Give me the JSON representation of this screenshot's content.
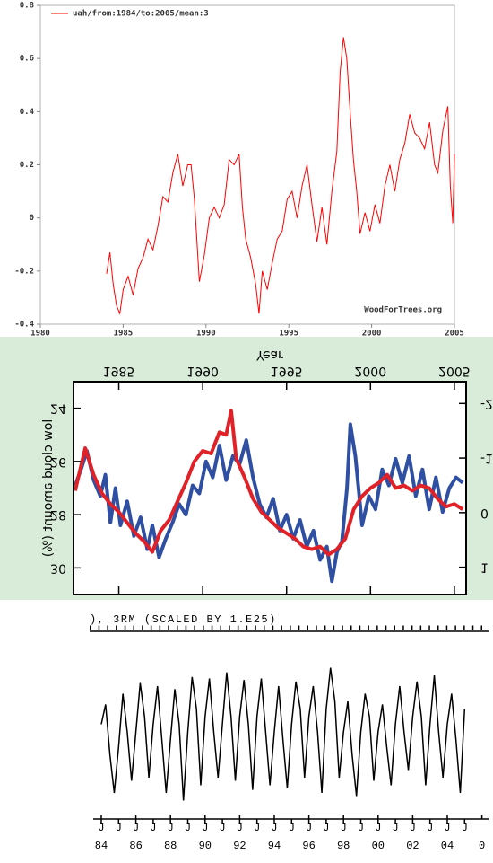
{
  "chart_data": [
    {
      "type": "line",
      "series": [
        {
          "name": "uah/from:1984/to:2005/mean:3",
          "color": "#ff0000",
          "values": [
            -0.21,
            -0.13,
            -0.25,
            -0.33,
            -0.36,
            -0.27,
            -0.22,
            -0.29,
            -0.19,
            -0.15,
            -0.08,
            -0.12,
            -0.03,
            0.08,
            0.06,
            0.17,
            0.24,
            0.12,
            0.2,
            0.2,
            0.07,
            -0.24,
            -0.14,
            0,
            0.04,
            0,
            0.05,
            0.22,
            0.2,
            0.24,
            0.04,
            -0.08,
            -0.15,
            -0.25,
            -0.36,
            -0.2,
            -0.27,
            -0.17,
            -0.08,
            -0.05,
            0.07,
            0.1,
            0,
            0.12,
            0.2,
            0.05,
            -0.09,
            0.04,
            -0.1,
            0.1,
            0.25,
            0.55,
            0.68,
            0.6,
            0.4,
            0.22,
            0.1,
            -0.06,
            0.02,
            -0.05,
            0.05,
            -0.02,
            0.12,
            0.2,
            0.1,
            0.22,
            0.28,
            0.39,
            0.32,
            0.3,
            0.26,
            0.36,
            0.2,
            0.17,
            0.33,
            0.42,
            0.12,
            -0.02,
            0.24
          ]
        }
      ],
      "x": [
        1984.0,
        1984.2,
        1984.4,
        1984.6,
        1984.8,
        1985.0,
        1985.3,
        1985.6,
        1985.9,
        1986.2,
        1986.5,
        1986.8,
        1987.1,
        1987.4,
        1987.7,
        1988.0,
        1988.3,
        1988.6,
        1988.9,
        1989.1,
        1989.3,
        1989.6,
        1989.9,
        1990.2,
        1990.5,
        1990.8,
        1991.1,
        1991.4,
        1991.7,
        1992.0,
        1992.2,
        1992.4,
        1992.7,
        1993.0,
        1993.2,
        1993.4,
        1993.7,
        1994.0,
        1994.3,
        1994.6,
        1994.9,
        1995.2,
        1995.5,
        1995.8,
        1996.1,
        1996.4,
        1996.7,
        1997.0,
        1997.3,
        1997.6,
        1997.9,
        1998.1,
        1998.3,
        1998.5,
        1998.7,
        1998.9,
        1999.1,
        1999.3,
        1999.6,
        1999.9,
        2000.2,
        2000.5,
        2000.8,
        2001.1,
        2001.4,
        2001.7,
        2002.0,
        2002.3,
        2002.6,
        2002.9,
        2003.2,
        2003.5,
        2003.8,
        2004.0,
        2004.3,
        2004.6,
        2004.75,
        2004.9,
        2005.0
      ],
      "xlim": [
        1980,
        2005
      ],
      "xticks": [
        1980,
        1985,
        1990,
        1995,
        2000,
        2005
      ],
      "ylim": [
        -0.4,
        0.8
      ],
      "yticks": [
        -0.4,
        -0.2,
        0,
        0.2,
        0.4,
        0.6,
        0.8
      ],
      "annotation": "WoodForTrees.org",
      "legend": "upper-left"
    },
    {
      "type": "line",
      "xlabel": "Year",
      "ylabel": "low cloud amount (%)",
      "flipped": "vertical",
      "series": [
        {
          "color": "#2f4fa3",
          "x": [
            1982.4,
            1982.8,
            1983.1,
            1983.5,
            1983.9,
            1984.2,
            1984.5,
            1984.8,
            1985.1,
            1985.5,
            1985.9,
            1986.3,
            1986.7,
            1987.0,
            1987.4,
            1987.8,
            1988.2,
            1988.6,
            1989.0,
            1989.4,
            1989.8,
            1990.2,
            1990.6,
            1991.0,
            1991.4,
            1991.8,
            1992.2,
            1992.6,
            1993.0,
            1993.4,
            1993.8,
            1994.2,
            1994.6,
            1995.0,
            1995.4,
            1995.8,
            1996.2,
            1996.6,
            1997.0,
            1997.4,
            1997.7,
            1998.0,
            1998.3,
            1998.6,
            1998.8,
            1999.1,
            1999.5,
            1999.9,
            2000.3,
            2000.7,
            2001.1,
            2001.5,
            2001.9,
            2002.3,
            2002.7,
            2003.1,
            2003.5,
            2003.9,
            2004.3,
            2004.7,
            2005.1,
            2005.5
          ],
          "values": [
            26.9,
            26.2,
            25.6,
            26.7,
            27.3,
            26.5,
            28.3,
            27.0,
            28.4,
            27.5,
            28.8,
            28.1,
            29.3,
            28.4,
            29.6,
            28.9,
            28.3,
            27.6,
            28.0,
            26.9,
            27.2,
            26.0,
            26.6,
            25.4,
            26.7,
            25.8,
            26.1,
            25.2,
            26.6,
            27.6,
            28.1,
            27.4,
            28.6,
            28.0,
            28.9,
            28.2,
            29.2,
            28.6,
            29.7,
            29.2,
            30.5,
            29.4,
            29.0,
            27.0,
            24.6,
            25.8,
            28.4,
            27.3,
            27.8,
            26.3,
            26.9,
            25.9,
            26.8,
            25.8,
            27.3,
            26.3,
            27.8,
            26.6,
            27.9,
            27.0,
            26.6,
            26.8
          ]
        },
        {
          "color": "#e02228",
          "x": [
            1982.4,
            1983.0,
            1983.5,
            1984.0,
            1984.5,
            1985.0,
            1985.5,
            1986.0,
            1986.5,
            1987.0,
            1987.5,
            1988.0,
            1988.5,
            1989.0,
            1989.5,
            1990.0,
            1990.5,
            1991.0,
            1991.4,
            1991.7,
            1992.0,
            1992.5,
            1993.0,
            1993.5,
            1994.0,
            1994.5,
            1995.0,
            1995.5,
            1996.0,
            1996.5,
            1997.0,
            1997.5,
            1998.0,
            1998.5,
            1999.0,
            1999.5,
            2000.0,
            2000.5,
            2001.0,
            2001.5,
            2002.0,
            2002.5,
            2003.0,
            2003.5,
            2004.0,
            2004.5,
            2005.0,
            2005.5
          ],
          "values": [
            27.1,
            25.5,
            26.5,
            27.2,
            27.6,
            27.9,
            28.3,
            28.7,
            29.0,
            29.4,
            28.6,
            28.2,
            27.5,
            26.8,
            26.0,
            25.6,
            25.7,
            24.9,
            25.0,
            24.1,
            25.9,
            26.6,
            27.4,
            27.9,
            28.2,
            28.5,
            28.7,
            28.9,
            29.2,
            29.3,
            29.2,
            29.5,
            29.3,
            28.9,
            27.8,
            27.3,
            27.0,
            26.8,
            26.5,
            27.0,
            26.9,
            27.1,
            26.9,
            27.0,
            27.4,
            27.7,
            27.6,
            27.8
          ]
        }
      ],
      "xlim": [
        1982.3,
        2005.7
      ],
      "xticks": [
        1985,
        1990,
        1995,
        2000,
        2005
      ],
      "ylim": [
        23,
        31
      ],
      "yticks": [
        24,
        26,
        28,
        30
      ],
      "y2lim": [
        -2.4,
        1.5
      ],
      "y2ticks": [
        -2,
        -1,
        0,
        1
      ]
    },
    {
      "type": "line",
      "title": "), 3RM (SCALED BY 1.E25)",
      "color": "#000000",
      "x": [
        1984.0,
        1984.25,
        1984.5,
        1984.75,
        1985.0,
        1985.25,
        1985.5,
        1985.75,
        1986.0,
        1986.25,
        1986.5,
        1986.75,
        1987.0,
        1987.25,
        1987.5,
        1987.75,
        1988.0,
        1988.25,
        1988.5,
        1988.75,
        1989.0,
        1989.25,
        1989.5,
        1989.75,
        1990.0,
        1990.25,
        1990.5,
        1990.75,
        1991.0,
        1991.25,
        1991.5,
        1991.75,
        1992.0,
        1992.25,
        1992.5,
        1992.75,
        1993.0,
        1993.25,
        1993.5,
        1993.75,
        1994.0,
        1994.25,
        1994.5,
        1994.75,
        1995.0,
        1995.25,
        1995.5,
        1995.75,
        1996.0,
        1996.25,
        1996.5,
        1996.75,
        1997.0,
        1997.25,
        1997.5,
        1997.75,
        1998.0,
        1998.25,
        1998.5,
        1998.75,
        1999.0,
        1999.25,
        1999.5,
        1999.75,
        2000.0,
        2000.25,
        2000.5,
        2000.75,
        2001.0,
        2001.25,
        2001.5,
        2001.75,
        2002.0,
        2002.25,
        2002.5,
        2002.75,
        2003.0,
        2003.25,
        2003.5,
        2003.75,
        2004.0,
        2004.25,
        2004.5,
        2004.75,
        2005.0
      ],
      "values": [
        5.5,
        6.8,
        3.5,
        1.0,
        4.0,
        7.5,
        5.0,
        1.8,
        5.0,
        8.2,
        6.0,
        2.0,
        5.5,
        8.0,
        4.5,
        1.0,
        4.5,
        7.8,
        5.5,
        0.5,
        5.0,
        8.6,
        6.5,
        1.5,
        6.0,
        8.5,
        5.0,
        2.0,
        5.5,
        8.9,
        6.0,
        1.8,
        6.0,
        8.4,
        5.5,
        1.2,
        6.0,
        8.5,
        5.0,
        1.5,
        5.0,
        8.0,
        4.5,
        1.3,
        5.5,
        8.3,
        6.5,
        2.0,
        6.0,
        8.0,
        5.0,
        1.0,
        6.5,
        9.2,
        7.0,
        2.0,
        5.0,
        7.0,
        3.5,
        0.8,
        5.0,
        7.5,
        6.0,
        1.8,
        5.0,
        6.8,
        4.0,
        1.5,
        5.5,
        8.0,
        5.0,
        2.5,
        6.0,
        8.3,
        6.0,
        1.5,
        5.5,
        8.7,
        5.0,
        2.0,
        5.5,
        7.5,
        4.5,
        1.0,
        6.5
      ],
      "xlim": [
        1983.5,
        2006.5
      ],
      "ylim": [
        0,
        10
      ],
      "xticks": [
        {
          "value": 1984,
          "label": "84"
        },
        {
          "value": 1986,
          "label": "86"
        },
        {
          "value": 1988,
          "label": "88"
        },
        {
          "value": 1990,
          "label": "90"
        },
        {
          "value": 1992,
          "label": "92"
        },
        {
          "value": 1994,
          "label": "94"
        },
        {
          "value": 1996,
          "label": "96"
        },
        {
          "value": 1998,
          "label": "98"
        },
        {
          "value": 2000,
          "label": "00"
        },
        {
          "value": 2002,
          "label": "02"
        },
        {
          "value": 2004,
          "label": "04"
        },
        {
          "value": 2006,
          "label": "0"
        }
      ],
      "minor_ticks": [
        1984,
        1985,
        1986,
        1987,
        1988,
        1989,
        1990,
        1991,
        1992,
        1993,
        1994,
        1995,
        1996,
        1997,
        1998,
        1999,
        2000,
        2001,
        2002,
        2003,
        2004,
        2005
      ],
      "minor_tick_label": "J"
    }
  ]
}
